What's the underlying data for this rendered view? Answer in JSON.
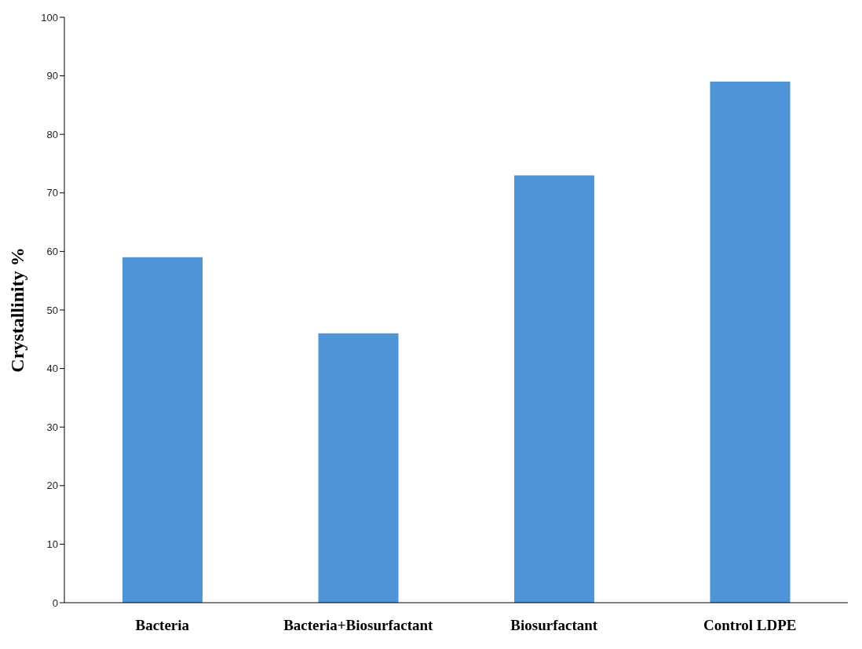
{
  "chart_data": {
    "type": "bar",
    "ylabel": "Crystallinity %",
    "categories": [
      "Bacteria",
      "Bacteria+Biosurfactant",
      "Biosurfactant",
      "Control LDPE"
    ],
    "values": [
      59,
      46,
      73,
      89
    ],
    "color": "#4f94d6",
    "ylim": [
      0,
      100
    ],
    "yticks": [
      0,
      10,
      20,
      30,
      40,
      50,
      60,
      70,
      80,
      90,
      100
    ],
    "grid": false,
    "legend": false
  }
}
